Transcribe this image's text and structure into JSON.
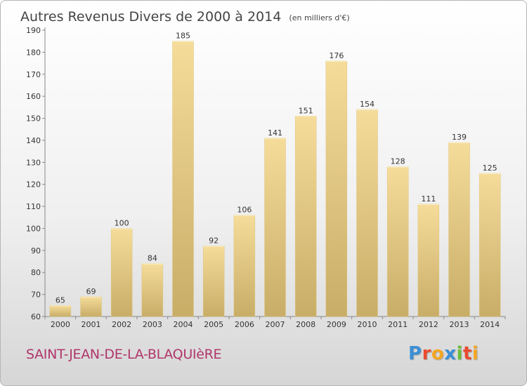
{
  "chart_data": {
    "type": "bar",
    "title": "Autres Revenus Divers de 2000 à 2014",
    "subtitle": "(en milliers d'€)",
    "categories": [
      "2000",
      "2001",
      "2002",
      "2003",
      "2004",
      "2005",
      "2006",
      "2007",
      "2008",
      "2009",
      "2010",
      "2011",
      "2012",
      "2013",
      "2014"
    ],
    "values": [
      65,
      69,
      100,
      84,
      185,
      92,
      106,
      141,
      151,
      176,
      154,
      128,
      111,
      139,
      125
    ],
    "ylim": [
      60,
      190
    ],
    "yticks": [
      60,
      70,
      80,
      90,
      100,
      110,
      120,
      130,
      140,
      150,
      160,
      170,
      180,
      190
    ],
    "grid": false,
    "bar_color_top": "#f5dc9a",
    "bar_color_bottom": "#c8ad67"
  },
  "footer": {
    "commune": "SAINT-JEAN-DE-LA-BLAQUIèRE",
    "logo_letters": [
      {
        "char": "P",
        "color": "#3a8fd6"
      },
      {
        "char": "r",
        "color": "#e94a2d"
      },
      {
        "char": "o",
        "color": "#f5a623"
      },
      {
        "char": "x",
        "color": "#3a8fd6"
      },
      {
        "char": "i",
        "color": "#6bbf3a"
      },
      {
        "char": "t",
        "color": "#e94a2d"
      },
      {
        "char": "i",
        "color": "#f5a623"
      }
    ]
  }
}
